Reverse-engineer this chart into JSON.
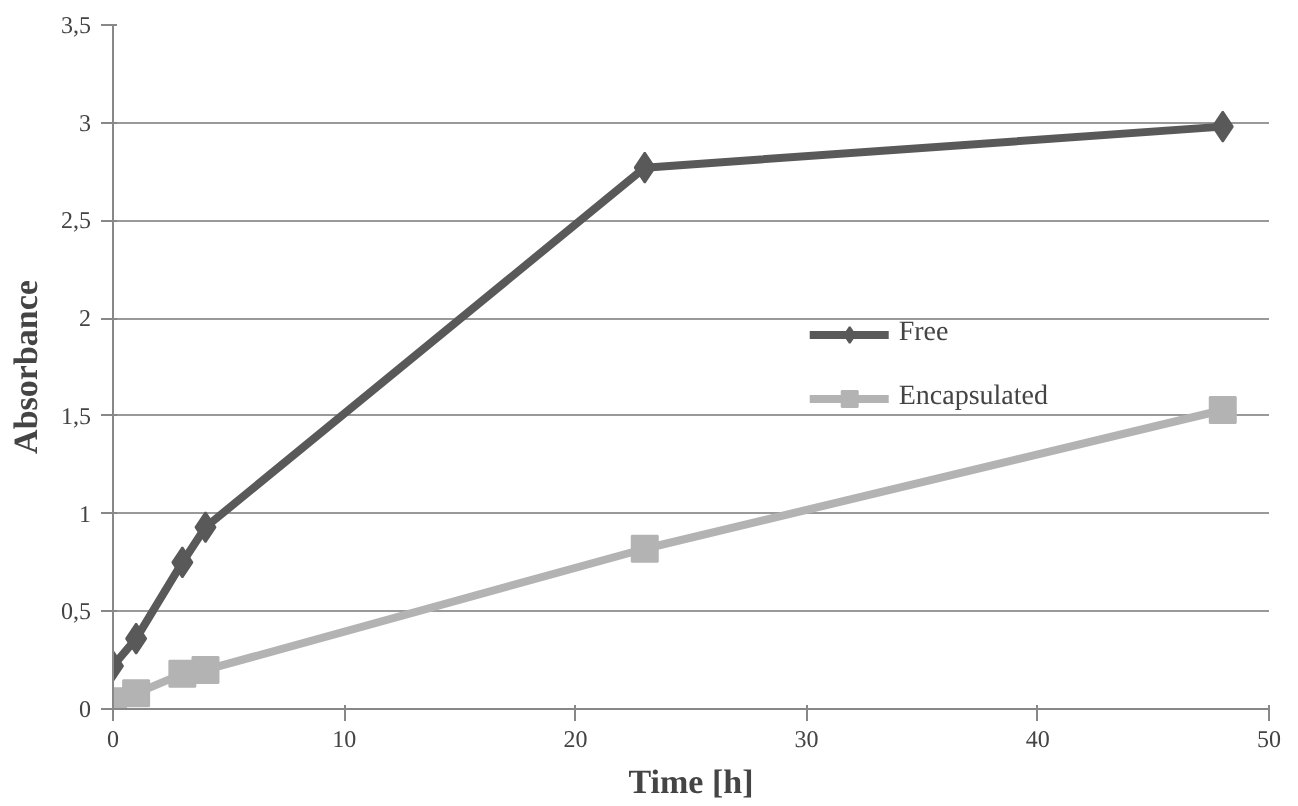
{
  "chart_data": {
    "type": "line",
    "xlabel": "Time [h]",
    "ylabel": "Absorbance",
    "xlim": [
      0,
      50
    ],
    "xticks": [
      0,
      10,
      20,
      30,
      40,
      50
    ],
    "ylim": [
      0,
      3.5
    ],
    "yticks": [
      {
        "value": 0,
        "label": "0"
      },
      {
        "value": 0.5,
        "label": "0,5"
      },
      {
        "value": 1,
        "label": "1"
      },
      {
        "value": 1.5,
        "label": "1,5"
      },
      {
        "value": 2,
        "label": "2"
      },
      {
        "value": 2.5,
        "label": "2,5"
      },
      {
        "value": 3,
        "label": "3"
      },
      {
        "value": 3.5,
        "label": "3,5"
      }
    ],
    "grid": "y",
    "legend": "right",
    "series": [
      {
        "name": "Free",
        "color": "#595959",
        "marker": "diamond",
        "x": [
          0,
          1,
          3,
          4,
          23,
          48
        ],
        "values": [
          0.22,
          0.36,
          0.75,
          0.93,
          2.77,
          2.98
        ]
      },
      {
        "name": "Encapsulated",
        "color": "#b3b3b3",
        "marker": "square",
        "x": [
          0,
          1,
          3,
          4,
          23,
          48
        ],
        "values": [
          0.04,
          0.08,
          0.18,
          0.2,
          0.82,
          1.53
        ]
      }
    ]
  }
}
